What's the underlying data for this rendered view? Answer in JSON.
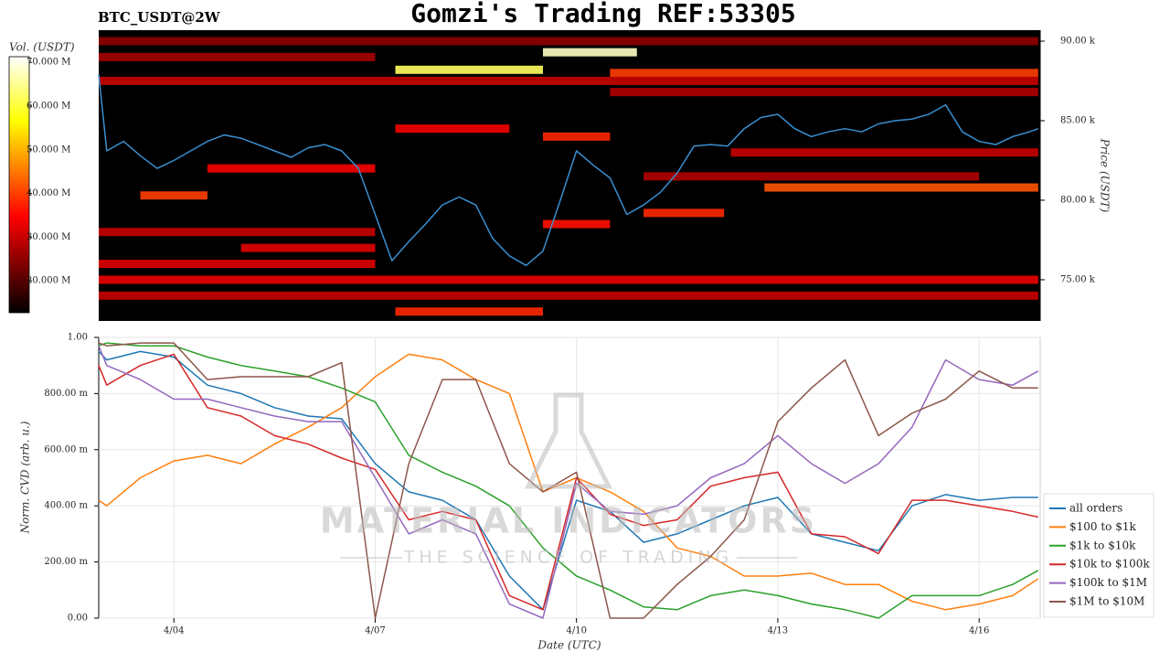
{
  "title": "Gomzi's Trading REF:53305",
  "watermark": {
    "title": "MATERIAL INDICATORS",
    "subtitle": "THE SCIENCE OF TRADING"
  },
  "chart_data": [
    {
      "type": "heatmap",
      "title": "BTC_USDT@2W",
      "colormap": "hot",
      "colorbar_label": "Vol. (USDT)",
      "colorbar_lim": [
        12700000,
        71300000
      ],
      "colorbar_ticks": [
        {
          "value": 20000000,
          "label": "20.000 M"
        },
        {
          "value": 30000000,
          "label": "30.000 M"
        },
        {
          "value": 40000000,
          "label": "40.000 M"
        },
        {
          "value": 50000000,
          "label": "50.000 M"
        },
        {
          "value": 60000000,
          "label": "60.000 M"
        },
        {
          "value": 70000000,
          "label": "70.000 M"
        }
      ],
      "y_label": "Price (USDT)",
      "ylim": [
        72410,
        90690
      ],
      "yticks": [
        {
          "value": 75000,
          "label": "75.00 k"
        },
        {
          "value": 80000,
          "label": "80.00 k"
        },
        {
          "value": 85000,
          "label": "85.00 k"
        },
        {
          "value": 90000,
          "label": "90.00 k"
        }
      ],
      "xlim": [
        2.88,
        16.91
      ],
      "bands": [
        {
          "price": 90000,
          "x0": 2.88,
          "x1": 16.88,
          "volume": 25000000
        },
        {
          "price": 89300,
          "x0": 9.5,
          "x1": 10.9,
          "volume": 68000000
        },
        {
          "price": 89000,
          "x0": 2.88,
          "x1": 7.0,
          "volume": 27000000
        },
        {
          "price": 88200,
          "x0": 7.3,
          "x1": 9.5,
          "volume": 62000000
        },
        {
          "price": 88000,
          "x0": 10.5,
          "x1": 16.88,
          "volume": 40000000
        },
        {
          "price": 87500,
          "x0": 2.88,
          "x1": 16.88,
          "volume": 30000000
        },
        {
          "price": 86800,
          "x0": 10.5,
          "x1": 16.88,
          "volume": 28000000
        },
        {
          "price": 84500,
          "x0": 7.3,
          "x1": 9.0,
          "volume": 34000000
        },
        {
          "price": 84000,
          "x0": 9.5,
          "x1": 10.5,
          "volume": 38000000
        },
        {
          "price": 83000,
          "x0": 12.3,
          "x1": 16.88,
          "volume": 30000000
        },
        {
          "price": 82000,
          "x0": 4.5,
          "x1": 7.0,
          "volume": 34000000
        },
        {
          "price": 81500,
          "x0": 11.0,
          "x1": 16.0,
          "volume": 28000000
        },
        {
          "price": 80800,
          "x0": 12.8,
          "x1": 16.88,
          "volume": 42000000
        },
        {
          "price": 80300,
          "x0": 3.5,
          "x1": 4.5,
          "volume": 40000000
        },
        {
          "price": 79200,
          "x0": 11.0,
          "x1": 12.2,
          "volume": 38000000
        },
        {
          "price": 78500,
          "x0": 9.5,
          "x1": 10.5,
          "volume": 36000000
        },
        {
          "price": 78000,
          "x0": 2.88,
          "x1": 7.0,
          "volume": 30000000
        },
        {
          "price": 77000,
          "x0": 5.0,
          "x1": 7.0,
          "volume": 32000000
        },
        {
          "price": 76000,
          "x0": 2.88,
          "x1": 7.0,
          "volume": 32000000
        },
        {
          "price": 75000,
          "x0": 2.88,
          "x1": 16.88,
          "volume": 33000000
        },
        {
          "price": 74000,
          "x0": 2.88,
          "x1": 16.88,
          "volume": 30000000
        },
        {
          "price": 73000,
          "x0": 7.3,
          "x1": 9.5,
          "volume": 38000000
        }
      ],
      "x": [
        2.88,
        3.0,
        3.25,
        3.5,
        3.75,
        4.0,
        4.25,
        4.5,
        4.75,
        5.0,
        5.25,
        5.5,
        5.75,
        6.0,
        6.25,
        6.5,
        6.75,
        7.0,
        7.25,
        7.5,
        7.75,
        8.0,
        8.25,
        8.5,
        8.75,
        9.0,
        9.25,
        9.5,
        9.75,
        10.0,
        10.25,
        10.5,
        10.75,
        11.0,
        11.25,
        11.5,
        11.75,
        12.0,
        12.25,
        12.5,
        12.75,
        13.0,
        13.25,
        13.5,
        13.75,
        14.0,
        14.25,
        14.5,
        14.75,
        15.0,
        15.25,
        15.5,
        15.75,
        16.0,
        16.25,
        16.5,
        16.75,
        16.88
      ],
      "series": [
        {
          "color": "#3a8fd0",
          "values": [
            87900,
            83100,
            83700,
            82800,
            82000,
            82500,
            83100,
            83700,
            84100,
            83900,
            83500,
            83100,
            82700,
            83300,
            83500,
            83100,
            82000,
            79100,
            76200,
            77400,
            78500,
            79700,
            80200,
            79700,
            77600,
            76500,
            75900,
            76800,
            79900,
            83100,
            82200,
            81400,
            79100,
            79700,
            80500,
            81700,
            83400,
            83500,
            83400,
            84500,
            85200,
            85400,
            84500,
            84000,
            84300,
            84500,
            84300,
            84800,
            85000,
            85100,
            85400,
            86000,
            84300,
            83700,
            83500,
            84000,
            84300,
            84500
          ]
        }
      ]
    },
    {
      "type": "line",
      "x_label": "Date (UTC)",
      "y_label": "Norm. CVD (arb. u.)",
      "grid": true,
      "xlim": [
        2.88,
        16.91
      ],
      "xticks": [
        {
          "value": 4,
          "label": "4/04"
        },
        {
          "value": 7,
          "label": "4/07"
        },
        {
          "value": 10,
          "label": "4/10"
        },
        {
          "value": 13,
          "label": "4/13"
        },
        {
          "value": 16,
          "label": "4/16"
        }
      ],
      "ylim": [
        0,
        1
      ],
      "yticks": [
        {
          "value": 0,
          "label": "0.00"
        },
        {
          "value": 0.2,
          "label": "200.00 m"
        },
        {
          "value": 0.4,
          "label": "400.00 m"
        },
        {
          "value": 0.6,
          "label": "600.00 m"
        },
        {
          "value": 0.8,
          "label": "800.00 m"
        },
        {
          "value": 1,
          "label": "1.00"
        }
      ],
      "x": [
        2.88,
        3.0,
        3.5,
        4.0,
        4.5,
        5.0,
        5.5,
        6.0,
        6.5,
        7.0,
        7.5,
        8.0,
        8.5,
        9.0,
        9.5,
        10.0,
        10.5,
        11.0,
        11.5,
        12.0,
        12.5,
        13.0,
        13.5,
        14.0,
        14.5,
        15.0,
        15.5,
        16.0,
        16.5,
        16.88
      ],
      "series": [
        {
          "name": "all orders",
          "color": "#1f77b4",
          "values": [
            0.95,
            0.92,
            0.95,
            0.93,
            0.83,
            0.8,
            0.75,
            0.72,
            0.71,
            0.55,
            0.45,
            0.42,
            0.35,
            0.15,
            0.03,
            0.42,
            0.38,
            0.27,
            0.3,
            0.35,
            0.4,
            0.43,
            0.3,
            0.27,
            0.24,
            0.4,
            0.44,
            0.42,
            0.43,
            0.43
          ]
        },
        {
          "name": "$100 to $1k",
          "color": "#ff7f0e",
          "values": [
            0.42,
            0.4,
            0.5,
            0.56,
            0.58,
            0.55,
            0.62,
            0.68,
            0.75,
            0.86,
            0.94,
            0.92,
            0.85,
            0.8,
            0.45,
            0.5,
            0.45,
            0.38,
            0.25,
            0.22,
            0.15,
            0.15,
            0.16,
            0.12,
            0.12,
            0.06,
            0.03,
            0.05,
            0.08,
            0.14
          ]
        },
        {
          "name": "$1k to $10k",
          "color": "#2ca02c",
          "values": [
            0.97,
            0.98,
            0.97,
            0.97,
            0.93,
            0.9,
            0.88,
            0.86,
            0.82,
            0.77,
            0.58,
            0.52,
            0.47,
            0.4,
            0.25,
            0.15,
            0.1,
            0.04,
            0.03,
            0.08,
            0.1,
            0.08,
            0.05,
            0.03,
            0.0,
            0.08,
            0.08,
            0.08,
            0.12,
            0.17
          ]
        },
        {
          "name": "$10k to $100k",
          "color": "#d62728",
          "values": [
            0.9,
            0.83,
            0.9,
            0.94,
            0.75,
            0.72,
            0.65,
            0.62,
            0.57,
            0.53,
            0.35,
            0.38,
            0.35,
            0.08,
            0.03,
            0.5,
            0.37,
            0.33,
            0.35,
            0.47,
            0.5,
            0.52,
            0.3,
            0.29,
            0.23,
            0.42,
            0.42,
            0.4,
            0.38,
            0.36
          ]
        },
        {
          "name": "$100k to $1M",
          "color": "#9467bd",
          "values": [
            0.97,
            0.9,
            0.85,
            0.78,
            0.78,
            0.75,
            0.72,
            0.7,
            0.7,
            0.5,
            0.3,
            0.35,
            0.3,
            0.05,
            0.0,
            0.48,
            0.38,
            0.37,
            0.4,
            0.5,
            0.55,
            0.65,
            0.55,
            0.48,
            0.55,
            0.68,
            0.92,
            0.85,
            0.83,
            0.88
          ]
        },
        {
          "name": "$1M to $10M",
          "color": "#8c564b",
          "values": [
            0.98,
            0.97,
            0.98,
            0.98,
            0.85,
            0.86,
            0.86,
            0.86,
            0.91,
            0.0,
            0.55,
            0.85,
            0.85,
            0.55,
            0.45,
            0.52,
            0.0,
            0.0,
            0.12,
            0.22,
            0.35,
            0.7,
            0.82,
            0.92,
            0.65,
            0.73,
            0.78,
            0.88,
            0.82,
            0.82
          ]
        }
      ]
    }
  ]
}
